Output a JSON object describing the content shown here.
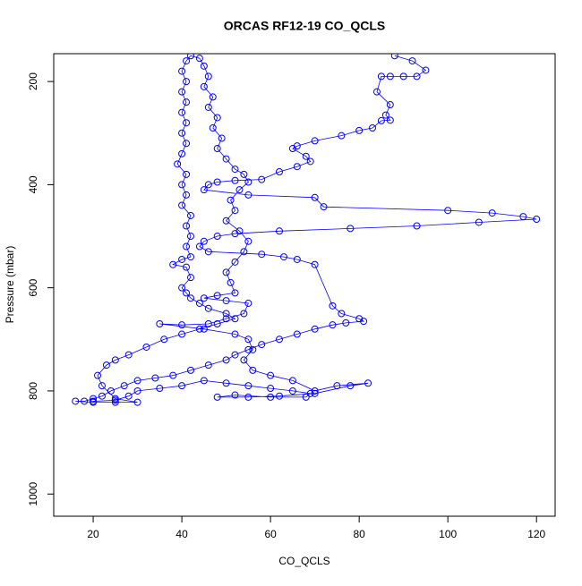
{
  "chart_data": {
    "type": "scatter",
    "title": "ORCAS RF12-19 CO_QCLS",
    "x_label": "CO_QCLS",
    "y_label": "Pressure (mbar)",
    "color": "#0000ff",
    "connect": true,
    "xlim": [
      11.1,
      124.2
    ],
    "ylim": [
      1043,
      146
    ],
    "xticks": [
      20,
      40,
      60,
      80,
      100,
      120
    ],
    "yticks": [
      200,
      400,
      600,
      800,
      1000
    ],
    "x": [
      88,
      92,
      95,
      93,
      90,
      87,
      85,
      84,
      87,
      86,
      87,
      85,
      83,
      80,
      76,
      70,
      66,
      65,
      68,
      69,
      66,
      62,
      58,
      52,
      48,
      46,
      45,
      55,
      70,
      72,
      100,
      110,
      117,
      120,
      107,
      93,
      78,
      62,
      52,
      48,
      45,
      44,
      46,
      58,
      63,
      66,
      70,
      74,
      76,
      80,
      81,
      77,
      74,
      70,
      66,
      62,
      58,
      55,
      52,
      50,
      46,
      42,
      38,
      34,
      30,
      27,
      24,
      22,
      20,
      18,
      16,
      20,
      25,
      30,
      25,
      22,
      21,
      23,
      25,
      28,
      32,
      36,
      40,
      44,
      48,
      52,
      50,
      46,
      44,
      42,
      41,
      40,
      42,
      41,
      38,
      40,
      42,
      41,
      42,
      41,
      42,
      40,
      41,
      40,
      41,
      39,
      40,
      41,
      40,
      41,
      40,
      41,
      40,
      41,
      40,
      41,
      42,
      44,
      45,
      46,
      45,
      47,
      46,
      48,
      47,
      49,
      48,
      50,
      52,
      54,
      55,
      53,
      51,
      52,
      50,
      53,
      55,
      54,
      52,
      50,
      51,
      52,
      48,
      45,
      50,
      55,
      54,
      50,
      46,
      40,
      35,
      45,
      52,
      55,
      56,
      54,
      56,
      60,
      65,
      70,
      75,
      82,
      78,
      70,
      62,
      55,
      48,
      52,
      60,
      68,
      69,
      65,
      60,
      55,
      50,
      45,
      40,
      35,
      30,
      28,
      25,
      20
    ],
    "values": [
      150,
      160,
      178,
      190,
      190,
      190,
      190,
      220,
      245,
      265,
      275,
      276,
      290,
      295,
      305,
      315,
      325,
      330,
      345,
      355,
      365,
      375,
      390,
      392,
      395,
      400,
      410,
      420,
      425,
      443,
      450,
      455,
      462,
      467,
      473,
      480,
      485,
      490,
      495,
      500,
      510,
      520,
      530,
      535,
      540,
      545,
      555,
      635,
      650,
      660,
      665,
      668,
      672,
      680,
      690,
      700,
      710,
      720,
      730,
      740,
      750,
      760,
      770,
      775,
      780,
      790,
      800,
      810,
      815,
      820,
      820,
      822,
      822,
      822,
      815,
      790,
      770,
      750,
      740,
      730,
      715,
      700,
      690,
      680,
      670,
      660,
      650,
      640,
      630,
      620,
      610,
      600,
      580,
      560,
      555,
      545,
      540,
      520,
      500,
      480,
      460,
      440,
      420,
      400,
      380,
      360,
      340,
      320,
      300,
      280,
      260,
      240,
      220,
      200,
      180,
      160,
      150,
      155,
      170,
      190,
      210,
      230,
      250,
      270,
      290,
      310,
      330,
      350,
      370,
      380,
      395,
      410,
      430,
      450,
      470,
      490,
      510,
      530,
      550,
      570,
      590,
      610,
      615,
      620,
      625,
      630,
      650,
      660,
      670,
      672,
      670,
      680,
      690,
      700,
      720,
      740,
      760,
      770,
      780,
      800,
      790,
      785,
      790,
      805,
      810,
      812,
      812,
      808,
      812,
      812,
      805,
      800,
      795,
      790,
      785,
      780,
      790,
      795,
      800,
      810,
      818,
      820
    ]
  }
}
